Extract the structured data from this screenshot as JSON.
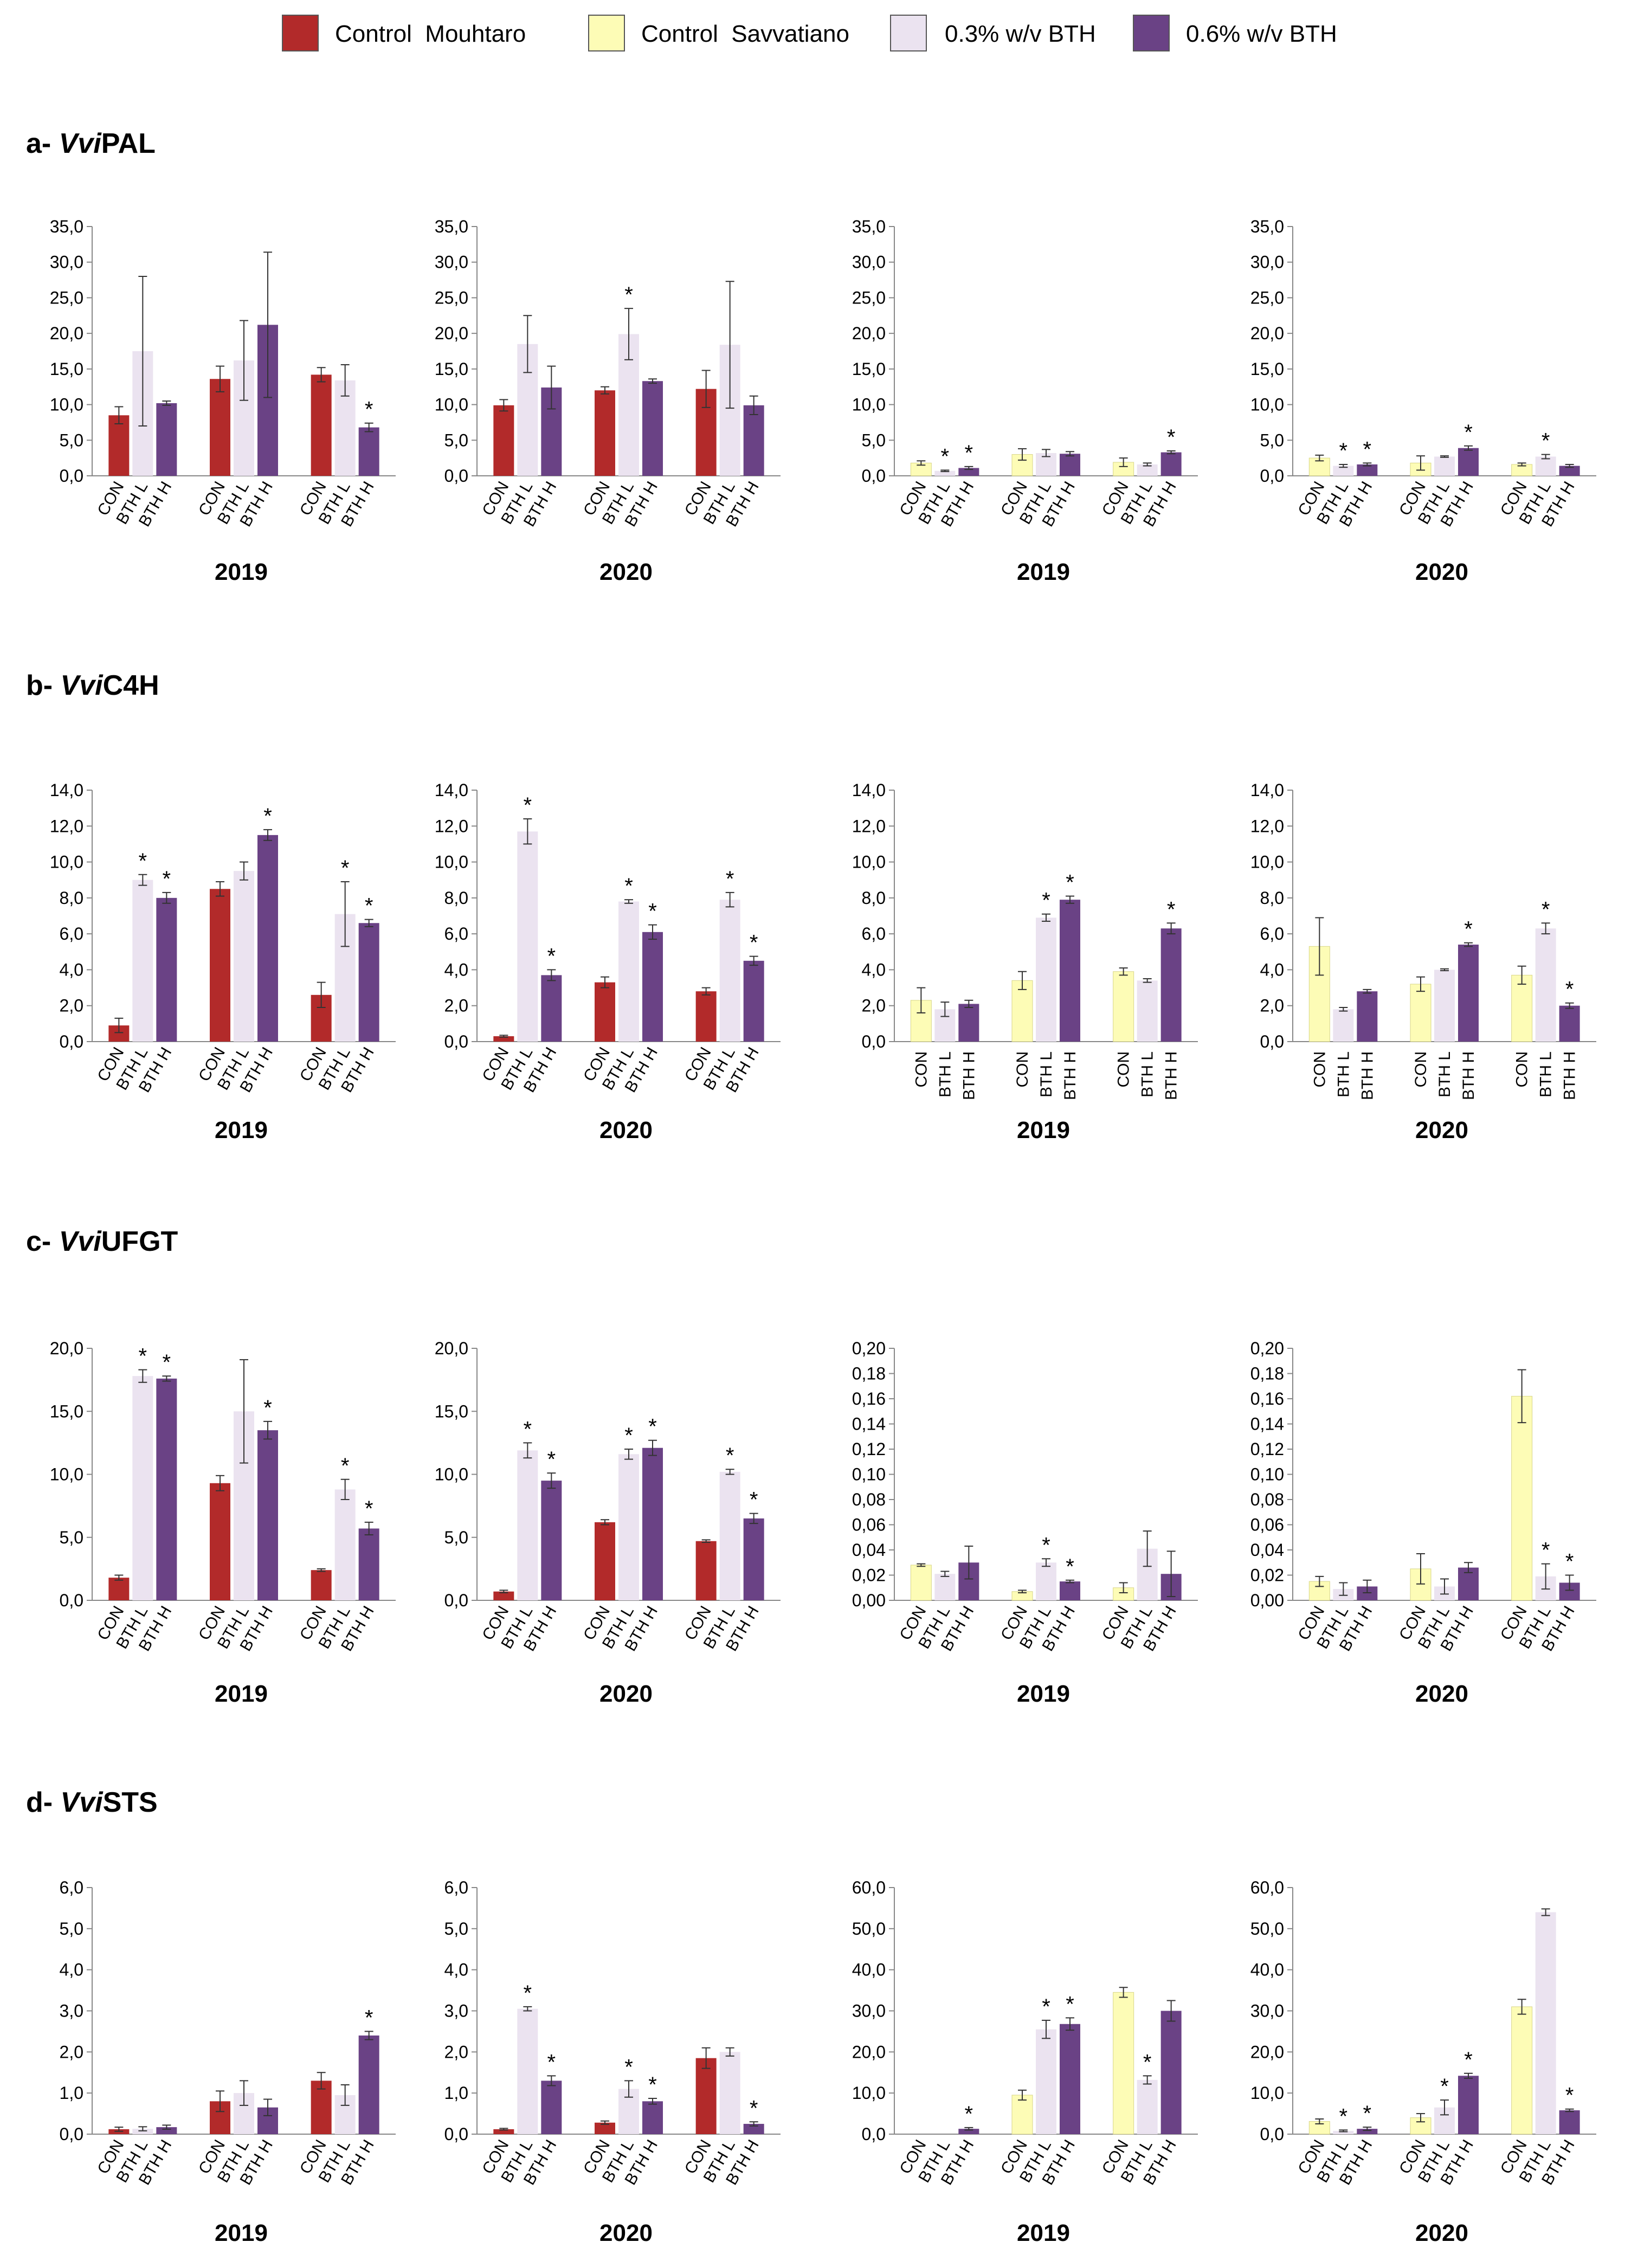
{
  "legend": [
    {
      "label": "Control  Mouhtaro",
      "color": "#b22a2a"
    },
    {
      "label": "Control  Savvatiano",
      "color": "#fdfcb6"
    },
    {
      "label": "0.3% w/v BTH",
      "color": "#ebe3f0"
    },
    {
      "label": "0.6% w/v BTH",
      "color": "#6a4285"
    }
  ],
  "colors": {
    "mouhtaro": "#b22a2a",
    "savvatiano": "#fdfcb6",
    "bth_low": "#ebe3f0",
    "bth_high": "#6a4285",
    "axis": "#888888",
    "text": "#000000"
  },
  "sections": [
    {
      "prefix": "a- ",
      "gene_italic": "Vvi",
      "gene_rest": "PAL"
    },
    {
      "prefix": "b- ",
      "gene_italic": "Vvi",
      "gene_rest": "C4H"
    },
    {
      "prefix": "c- ",
      "gene_italic": "Vvi",
      "gene_rest": "UFGT"
    },
    {
      "prefix": "d- ",
      "gene_italic": "Vvi",
      "gene_rest": "STS"
    }
  ],
  "chart_data": [
    {
      "type": "bar",
      "gene": "VviPAL",
      "variety": "Mouhtaro",
      "year": "2019",
      "ylim": [
        0,
        35
      ],
      "yticks": [
        "0,0",
        "5,0",
        "10,0",
        "15,0",
        "20,0",
        "25,0",
        "30,0",
        "35,0"
      ],
      "categories": [
        "CON",
        "BTH L",
        "BTH H",
        "CON",
        "BTH L",
        "BTH H",
        "CON",
        "BTH L",
        "BTH H"
      ],
      "values": [
        8.5,
        17.5,
        10.2,
        13.6,
        16.2,
        21.2,
        14.2,
        13.4,
        6.8
      ],
      "errors": [
        1.2,
        10.5,
        0.3,
        1.8,
        5.6,
        10.2,
        1.0,
        2.2,
        0.6
      ],
      "significant": [
        false,
        false,
        false,
        false,
        false,
        false,
        false,
        false,
        true
      ]
    },
    {
      "type": "bar",
      "gene": "VviPAL",
      "variety": "Mouhtaro",
      "year": "2020",
      "ylim": [
        0,
        35
      ],
      "yticks": [
        "0,0",
        "5,0",
        "10,0",
        "15,0",
        "20,0",
        "25,0",
        "30,0",
        "35,0"
      ],
      "categories": [
        "CON",
        "BTH L",
        "BTH H",
        "CON",
        "BTH L",
        "BTH H",
        "CON",
        "BTH L",
        "BTH H"
      ],
      "values": [
        9.9,
        18.5,
        12.4,
        12.0,
        19.9,
        13.3,
        12.2,
        18.4,
        9.9
      ],
      "errors": [
        0.8,
        4.0,
        3.0,
        0.5,
        3.6,
        0.3,
        2.6,
        8.9,
        1.3
      ],
      "significant": [
        false,
        false,
        false,
        false,
        true,
        false,
        false,
        false,
        false
      ]
    },
    {
      "type": "bar",
      "gene": "VviPAL",
      "variety": "Savvatiano",
      "year": "2019",
      "ylim": [
        0,
        35
      ],
      "yticks": [
        "0,0",
        "5,0",
        "10,0",
        "15,0",
        "20,0",
        "25,0",
        "30,0",
        "35,0"
      ],
      "categories": [
        "CON",
        "BTH L",
        "BTH H",
        "CON",
        "BTH L",
        "BTH H",
        "CON",
        "BTH L",
        "BTH H"
      ],
      "values": [
        1.8,
        0.7,
        1.1,
        3.0,
        3.2,
        3.1,
        1.9,
        1.6,
        3.3
      ],
      "errors": [
        0.3,
        0.1,
        0.2,
        0.8,
        0.5,
        0.3,
        0.6,
        0.2,
        0.2
      ],
      "significant": [
        false,
        true,
        true,
        false,
        false,
        false,
        false,
        false,
        true
      ]
    },
    {
      "type": "bar",
      "gene": "VviPAL",
      "variety": "Savvatiano",
      "year": "2020",
      "ylim": [
        0,
        35
      ],
      "yticks": [
        "0,0",
        "5,0",
        "10,0",
        "15,0",
        "20,0",
        "25,0",
        "30,0",
        "35,0"
      ],
      "categories": [
        "CON",
        "BTH L",
        "BTH H",
        "CON",
        "BTH L",
        "BTH H",
        "CON",
        "BTH L",
        "BTH H"
      ],
      "values": [
        2.5,
        1.4,
        1.6,
        1.8,
        2.7,
        3.9,
        1.6,
        2.7,
        1.4
      ],
      "errors": [
        0.4,
        0.2,
        0.2,
        1.0,
        0.1,
        0.3,
        0.2,
        0.3,
        0.2
      ],
      "significant": [
        false,
        true,
        true,
        false,
        false,
        true,
        false,
        true,
        false
      ]
    },
    {
      "type": "bar",
      "gene": "VviC4H",
      "variety": "Mouhtaro",
      "year": "2019",
      "ylim": [
        0,
        14
      ],
      "yticks": [
        "0,0",
        "2,0",
        "4,0",
        "6,0",
        "8,0",
        "10,0",
        "12,0",
        "14,0"
      ],
      "categories": [
        "CON",
        "BTH L",
        "BTH H",
        "CON",
        "BTH L",
        "BTH H",
        "CON",
        "BTH L",
        "BTH H"
      ],
      "values": [
        0.9,
        9.0,
        8.0,
        8.5,
        9.5,
        11.5,
        2.6,
        7.1,
        6.6
      ],
      "errors": [
        0.4,
        0.3,
        0.3,
        0.4,
        0.5,
        0.3,
        0.7,
        1.8,
        0.2
      ],
      "significant": [
        false,
        true,
        true,
        false,
        false,
        true,
        false,
        true,
        true
      ]
    },
    {
      "type": "bar",
      "gene": "VviC4H",
      "variety": "Mouhtaro",
      "year": "2020",
      "ylim": [
        0,
        14
      ],
      "yticks": [
        "0,0",
        "2,0",
        "4,0",
        "6,0",
        "8,0",
        "10,0",
        "12,0",
        "14,0"
      ],
      "categories": [
        "CON",
        "BTH L",
        "BTH H",
        "CON",
        "BTH L",
        "BTH H",
        "CON",
        "BTH L",
        "BTH H"
      ],
      "values": [
        0.3,
        11.7,
        3.7,
        3.3,
        7.8,
        6.1,
        2.8,
        7.9,
        4.5
      ],
      "errors": [
        0.05,
        0.7,
        0.3,
        0.3,
        0.1,
        0.4,
        0.2,
        0.4,
        0.25
      ],
      "significant": [
        false,
        true,
        true,
        false,
        true,
        true,
        false,
        true,
        true
      ]
    },
    {
      "type": "bar",
      "gene": "VviC4H",
      "variety": "Savvatiano",
      "year": "2019",
      "ylim": [
        0,
        14
      ],
      "yticks": [
        "0,0",
        "2,0",
        "4,0",
        "6,0",
        "8,0",
        "10,0",
        "12,0",
        "14,0"
      ],
      "categories": [
        "CON",
        "BTH L",
        "BTH H",
        "CON",
        "BTH L",
        "BTH H",
        "CON",
        "BTH L",
        "BTH H"
      ],
      "values": [
        2.3,
        1.8,
        2.1,
        3.4,
        6.9,
        7.9,
        3.9,
        3.4,
        6.3
      ],
      "errors": [
        0.7,
        0.4,
        0.2,
        0.5,
        0.2,
        0.2,
        0.2,
        0.1,
        0.3
      ],
      "significant": [
        false,
        false,
        false,
        false,
        true,
        true,
        false,
        false,
        true
      ]
    },
    {
      "type": "bar",
      "gene": "VviC4H",
      "variety": "Savvatiano",
      "year": "2020",
      "ylim": [
        0,
        14
      ],
      "yticks": [
        "0,0",
        "2,0",
        "4,0",
        "6,0",
        "8,0",
        "10,0",
        "12,0",
        "14,0"
      ],
      "categories": [
        "CON",
        "BTH L",
        "BTH H",
        "CON",
        "BTH L",
        "BTH H",
        "CON",
        "BTH L",
        "BTH H"
      ],
      "values": [
        5.3,
        1.8,
        2.8,
        3.2,
        4.0,
        5.4,
        3.7,
        6.3,
        2.0
      ],
      "errors": [
        1.6,
        0.1,
        0.1,
        0.4,
        0.05,
        0.1,
        0.5,
        0.3,
        0.15
      ],
      "significant": [
        false,
        false,
        false,
        false,
        false,
        true,
        false,
        true,
        true
      ]
    },
    {
      "type": "bar",
      "gene": "VviUFGT",
      "variety": "Mouhtaro",
      "year": "2019",
      "ylim": [
        0,
        20
      ],
      "yticks": [
        "0,0",
        "5,0",
        "10,0",
        "15,0",
        "20,0"
      ],
      "categories": [
        "CON",
        "BTH L",
        "BTH H",
        "CON",
        "BTH L",
        "BTH H",
        "CON",
        "BTH L",
        "BTH H"
      ],
      "values": [
        1.8,
        17.8,
        17.6,
        9.3,
        15.0,
        13.5,
        2.4,
        8.8,
        5.7
      ],
      "errors": [
        0.2,
        0.5,
        0.2,
        0.6,
        4.1,
        0.7,
        0.1,
        0.8,
        0.5
      ],
      "significant": [
        false,
        true,
        true,
        false,
        false,
        true,
        false,
        true,
        true
      ]
    },
    {
      "type": "bar",
      "gene": "VviUFGT",
      "variety": "Mouhtaro",
      "year": "2020",
      "ylim": [
        0,
        20
      ],
      "yticks": [
        "0,0",
        "5,0",
        "10,0",
        "15,0",
        "20,0"
      ],
      "categories": [
        "CON",
        "BTH L",
        "BTH H",
        "CON",
        "BTH L",
        "BTH H",
        "CON",
        "BTH L",
        "BTH H"
      ],
      "values": [
        0.7,
        11.9,
        9.5,
        6.2,
        11.6,
        12.1,
        4.7,
        10.2,
        6.5
      ],
      "errors": [
        0.1,
        0.6,
        0.6,
        0.2,
        0.4,
        0.6,
        0.1,
        0.2,
        0.4
      ],
      "significant": [
        false,
        true,
        true,
        false,
        true,
        true,
        false,
        true,
        true
      ]
    },
    {
      "type": "bar",
      "gene": "VviUFGT",
      "variety": "Savvatiano",
      "year": "2019",
      "ylim": [
        0,
        0.2
      ],
      "yticks": [
        "0,00",
        "0,02",
        "0,04",
        "0,06",
        "0,08",
        "0,10",
        "0,12",
        "0,14",
        "0,16",
        "0,18",
        "0,20"
      ],
      "categories": [
        "CON",
        "BTH L",
        "BTH H",
        "CON",
        "BTH L",
        "BTH H",
        "CON",
        "BTH L",
        "BTH H"
      ],
      "values": [
        0.028,
        0.021,
        0.03,
        0.007,
        0.03,
        0.015,
        0.01,
        0.041,
        0.021
      ],
      "errors": [
        0.001,
        0.002,
        0.013,
        0.001,
        0.003,
        0.001,
        0.004,
        0.014,
        0.018
      ],
      "significant": [
        false,
        false,
        false,
        false,
        true,
        true,
        false,
        false,
        false
      ]
    },
    {
      "type": "bar",
      "gene": "VviUFGT",
      "variety": "Savvatiano",
      "year": "2020",
      "ylim": [
        0,
        0.2
      ],
      "yticks": [
        "0,00",
        "0,02",
        "0,04",
        "0,06",
        "0,08",
        "0,10",
        "0,12",
        "0,14",
        "0,16",
        "0,18",
        "0,20"
      ],
      "categories": [
        "CON",
        "BTH L",
        "BTH H",
        "CON",
        "BTH L",
        "BTH H",
        "CON",
        "BTH L",
        "BTH H"
      ],
      "values": [
        0.015,
        0.009,
        0.011,
        0.025,
        0.011,
        0.026,
        0.162,
        0.019,
        0.014
      ],
      "errors": [
        0.004,
        0.005,
        0.005,
        0.012,
        0.006,
        0.004,
        0.021,
        0.01,
        0.006
      ],
      "significant": [
        false,
        false,
        false,
        false,
        false,
        false,
        false,
        true,
        true
      ]
    },
    {
      "type": "bar",
      "gene": "VviSTS",
      "variety": "Mouhtaro",
      "year": "2019",
      "ylim": [
        0,
        6
      ],
      "yticks": [
        "0,0",
        "1,0",
        "2,0",
        "3,0",
        "4,0",
        "5,0",
        "6,0"
      ],
      "categories": [
        "CON",
        "BTH L",
        "BTH H",
        "CON",
        "BTH L",
        "BTH H",
        "CON",
        "BTH L",
        "BTH H"
      ],
      "values": [
        0.12,
        0.13,
        0.17,
        0.8,
        1.0,
        0.65,
        1.3,
        0.95,
        2.4
      ],
      "errors": [
        0.05,
        0.05,
        0.05,
        0.25,
        0.3,
        0.2,
        0.2,
        0.25,
        0.1
      ],
      "significant": [
        false,
        false,
        false,
        false,
        false,
        false,
        false,
        false,
        true
      ]
    },
    {
      "type": "bar",
      "gene": "VviSTS",
      "variety": "Mouhtaro",
      "year": "2020",
      "ylim": [
        0,
        6
      ],
      "yticks": [
        "0,0",
        "1,0",
        "2,0",
        "3,0",
        "4,0",
        "5,0",
        "6,0"
      ],
      "categories": [
        "CON",
        "BTH L",
        "BTH H",
        "CON",
        "BTH L",
        "BTH H",
        "CON",
        "BTH L",
        "BTH H"
      ],
      "values": [
        0.12,
        3.05,
        1.3,
        0.28,
        1.1,
        0.8,
        1.85,
        2.0,
        0.25
      ],
      "errors": [
        0.02,
        0.05,
        0.12,
        0.04,
        0.2,
        0.07,
        0.25,
        0.1,
        0.05
      ],
      "significant": [
        false,
        true,
        true,
        false,
        true,
        true,
        false,
        false,
        true
      ]
    },
    {
      "type": "bar",
      "gene": "VviSTS",
      "variety": "Savvatiano",
      "year": "2019",
      "ylim": [
        0,
        60
      ],
      "yticks": [
        "0,0",
        "10,0",
        "20,0",
        "30,0",
        "40,0",
        "50,0",
        "60,0"
      ],
      "categories": [
        "CON",
        "BTH L",
        "BTH H",
        "CON",
        "BTH L",
        "BTH H",
        "CON",
        "BTH L",
        "BTH H"
      ],
      "values": [
        0.0,
        0.0,
        1.3,
        9.5,
        25.5,
        26.8,
        34.5,
        13.2,
        30.0
      ],
      "errors": [
        0,
        0,
        0.3,
        1.2,
        2.2,
        1.5,
        1.2,
        1.0,
        2.5
      ],
      "significant": [
        false,
        false,
        true,
        false,
        true,
        true,
        false,
        true,
        false
      ]
    },
    {
      "type": "bar",
      "gene": "VviSTS",
      "variety": "Savvatiano",
      "year": "2020",
      "ylim": [
        0,
        60
      ],
      "yticks": [
        "0,0",
        "10,0",
        "20,0",
        "30,0",
        "40,0",
        "50,0",
        "60,0"
      ],
      "categories": [
        "CON",
        "BTH L",
        "BTH H",
        "CON",
        "BTH L",
        "BTH H",
        "CON",
        "BTH L",
        "BTH H"
      ],
      "values": [
        3.1,
        0.8,
        1.3,
        4.0,
        6.5,
        14.2,
        31.0,
        54.0,
        5.8
      ],
      "errors": [
        0.6,
        0.2,
        0.4,
        1.0,
        1.8,
        0.6,
        1.8,
        0.8,
        0.3
      ],
      "significant": [
        false,
        true,
        true,
        false,
        true,
        true,
        false,
        false,
        true
      ]
    }
  ]
}
